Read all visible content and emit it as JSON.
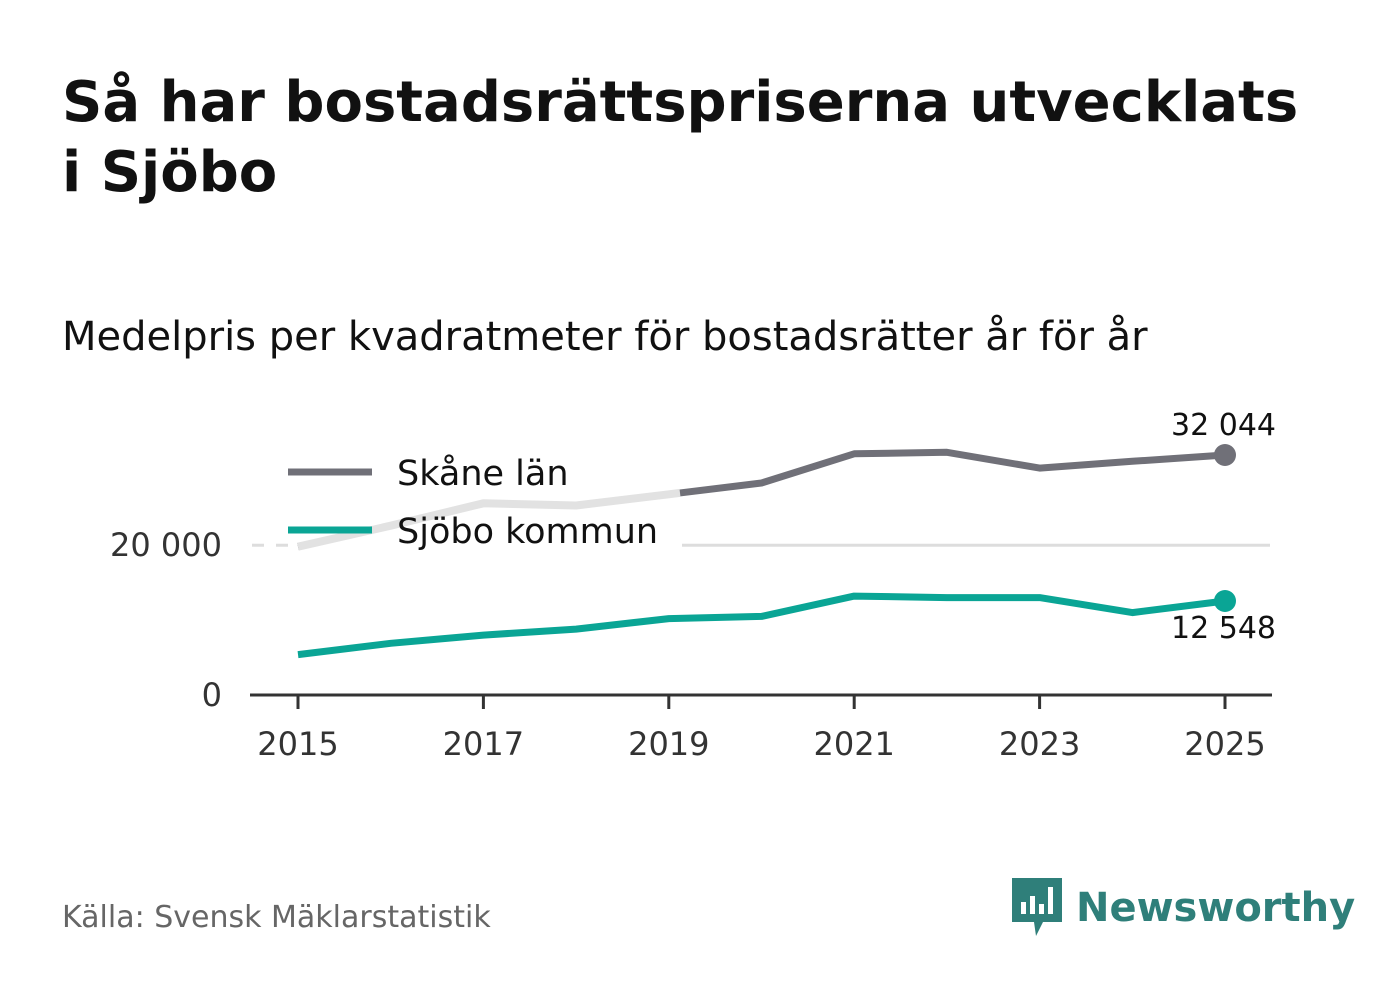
{
  "title": "Så har bostadsrättspriserna utvecklats i Sjöbo",
  "subtitle": "Medelpris per kvadratmeter för bostadsrätter år för år",
  "source": "Källa: Svensk Mäklarstatistik",
  "brand": "Newsworthy",
  "colors": {
    "skane": "#707078",
    "sjobo": "#0aa595",
    "fade": "#e2e2e2",
    "grid": "#dddddd",
    "axis": "#333333",
    "brand": "#2f7f7a"
  },
  "chart_data": {
    "type": "line",
    "x": [
      2015,
      2016,
      2017,
      2018,
      2019,
      2020,
      2021,
      2022,
      2023,
      2024,
      2025
    ],
    "series": [
      {
        "key": "skane",
        "name": "Skåne län",
        "values": [
          19800,
          22600,
          25600,
          25300,
          26800,
          28300,
          32200,
          32400,
          30300,
          31200,
          32044
        ]
      },
      {
        "key": "sjobo",
        "name": "Sjöbo kommun",
        "values": [
          5400,
          6900,
          8000,
          8800,
          10200,
          10500,
          13200,
          13000,
          13000,
          11000,
          12548
        ]
      }
    ],
    "end_labels": {
      "skane": "32 044",
      "sjobo": "12 548"
    },
    "y_ticks": [
      {
        "value": 0,
        "label": "0"
      },
      {
        "value": 20000,
        "label": "20 000"
      }
    ],
    "x_ticks": [
      {
        "value": 2015,
        "label": "2015"
      },
      {
        "value": 2017,
        "label": "2017"
      },
      {
        "value": 2019,
        "label": "2019"
      },
      {
        "value": 2021,
        "label": "2021"
      },
      {
        "value": 2023,
        "label": "2023"
      },
      {
        "value": 2025,
        "label": "2025"
      }
    ],
    "x_range": [
      2015,
      2025
    ],
    "y_range": [
      0,
      32044
    ],
    "xlabel": "",
    "ylabel": "",
    "grid": true,
    "legend": "top-left"
  }
}
